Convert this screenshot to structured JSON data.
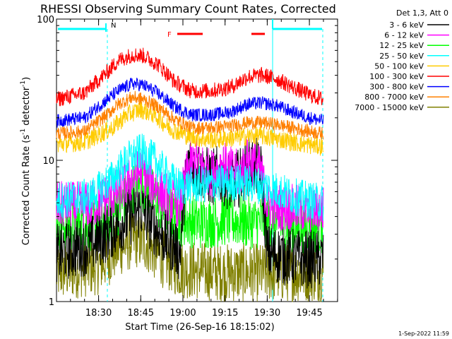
{
  "chart_data": {
    "type": "line",
    "title": "RHESSI Observing Summary Count Rates, Corrected",
    "xlabel": "Start Time (26-Sep-16 18:15:02)",
    "ylabel_main": "Corrected Count Rate (s",
    "ylabel_sup1": "-1",
    "ylabel_mid": " detector",
    "ylabel_sup2": "-1",
    "ylabel_end": ")",
    "yscale": "log",
    "ylim": [
      1,
      100
    ],
    "xlim_minutes": [
      0,
      100
    ],
    "x_ticks": [
      {
        "label": "18:30",
        "minutes": 14.97
      },
      {
        "label": "18:45",
        "minutes": 29.97
      },
      {
        "label": "19:00",
        "minutes": 44.97
      },
      {
        "label": "19:15",
        "minutes": 59.97
      },
      {
        "label": "19:30",
        "minutes": 74.97
      },
      {
        "label": "19:45",
        "minutes": 89.97
      }
    ],
    "y_ticks": [
      {
        "label": "1",
        "value": 1
      },
      {
        "label": "10",
        "value": 10
      },
      {
        "label": "100",
        "value": 100
      }
    ],
    "legend_title": "Det 1,3, Att 0",
    "legend_position": "right",
    "series": [
      {
        "name": "3 - 6 keV",
        "color": "#000000",
        "points": [
          [
            0,
            2.2
          ],
          [
            12,
            2.5
          ],
          [
            22,
            3.5
          ],
          [
            30,
            4.5
          ],
          [
            37,
            3.0
          ],
          [
            42,
            2.5
          ],
          [
            44,
            2.2
          ],
          [
            45,
            5
          ],
          [
            47,
            9.5
          ],
          [
            50,
            8.5
          ],
          [
            55,
            7.5
          ],
          [
            58,
            8
          ],
          [
            62,
            7
          ],
          [
            65,
            7.5
          ],
          [
            68,
            9
          ],
          [
            71,
            9
          ],
          [
            73,
            8
          ],
          [
            75,
            2.2
          ],
          [
            88,
            2.0
          ],
          [
            95,
            2.0
          ]
        ]
      },
      {
        "name": "6 - 12 keV",
        "color": "#ff00ff",
        "points": [
          [
            0,
            4.8
          ],
          [
            12,
            4.8
          ],
          [
            22,
            6
          ],
          [
            30,
            8.5
          ],
          [
            37,
            6
          ],
          [
            42,
            5
          ],
          [
            44,
            5
          ],
          [
            47,
            9
          ],
          [
            50,
            10
          ],
          [
            53,
            8.5
          ],
          [
            56,
            8
          ],
          [
            59,
            9.5
          ],
          [
            62,
            8.5
          ],
          [
            65,
            8
          ],
          [
            68,
            10
          ],
          [
            71,
            9.5
          ],
          [
            73,
            8
          ],
          [
            75,
            4.8
          ],
          [
            88,
            4.5
          ],
          [
            95,
            4.5
          ]
        ]
      },
      {
        "name": "12 - 25 keV",
        "color": "#00ff00",
        "points": [
          [
            0,
            3.5
          ],
          [
            15,
            3.5
          ],
          [
            22,
            4.5
          ],
          [
            28,
            6.5
          ],
          [
            32,
            6.5
          ],
          [
            38,
            4.5
          ],
          [
            44,
            3.8
          ],
          [
            52,
            3.6
          ],
          [
            60,
            3.8
          ],
          [
            70,
            3.6
          ],
          [
            75,
            3.8
          ],
          [
            82,
            3.5
          ],
          [
            95,
            3.3
          ]
        ]
      },
      {
        "name": "25 - 50 keV",
        "color": "#00ffff",
        "points": [
          [
            0,
            5.2
          ],
          [
            12,
            5.5
          ],
          [
            20,
            7.5
          ],
          [
            25,
            10
          ],
          [
            30,
            11.5
          ],
          [
            35,
            10
          ],
          [
            40,
            7.5
          ],
          [
            44,
            6.5
          ],
          [
            55,
            6.8
          ],
          [
            65,
            7
          ],
          [
            75,
            6.5
          ],
          [
            85,
            5.5
          ],
          [
            95,
            5.0
          ]
        ]
      },
      {
        "name": "50 - 100 keV",
        "color": "#ffcc00",
        "points": [
          [
            0,
            13
          ],
          [
            10,
            13.5
          ],
          [
            20,
            17
          ],
          [
            25,
            21
          ],
          [
            30,
            23
          ],
          [
            35,
            21
          ],
          [
            40,
            17
          ],
          [
            48,
            14.5
          ],
          [
            56,
            14
          ],
          [
            64,
            14.5
          ],
          [
            72,
            15
          ],
          [
            80,
            14
          ],
          [
            88,
            13
          ],
          [
            95,
            12.5
          ]
        ]
      },
      {
        "name": "100 - 300 keV",
        "color": "#ff0000",
        "points": [
          [
            0,
            27
          ],
          [
            10,
            30
          ],
          [
            18,
            42
          ],
          [
            22,
            51
          ],
          [
            27,
            56
          ],
          [
            31,
            55
          ],
          [
            36,
            48
          ],
          [
            42,
            36
          ],
          [
            48,
            31
          ],
          [
            55,
            31
          ],
          [
            62,
            33
          ],
          [
            68,
            39
          ],
          [
            73,
            40
          ],
          [
            78,
            38
          ],
          [
            84,
            33
          ],
          [
            90,
            29
          ],
          [
            95,
            27
          ]
        ]
      },
      {
        "name": "300 - 800 keV",
        "color": "#0000ff",
        "points": [
          [
            0,
            19
          ],
          [
            10,
            20
          ],
          [
            18,
            27
          ],
          [
            22,
            31
          ],
          [
            27,
            35
          ],
          [
            31,
            34
          ],
          [
            36,
            30
          ],
          [
            42,
            24
          ],
          [
            48,
            21
          ],
          [
            55,
            21
          ],
          [
            62,
            22
          ],
          [
            68,
            25
          ],
          [
            73,
            25.5
          ],
          [
            78,
            24.5
          ],
          [
            84,
            22
          ],
          [
            90,
            20
          ],
          [
            95,
            19
          ]
        ]
      },
      {
        "name": "800 - 7000 keV",
        "color": "#ff8000",
        "points": [
          [
            0,
            15.5
          ],
          [
            10,
            16
          ],
          [
            18,
            21
          ],
          [
            22,
            25
          ],
          [
            27,
            28
          ],
          [
            31,
            27
          ],
          [
            36,
            24
          ],
          [
            42,
            19.5
          ],
          [
            48,
            17
          ],
          [
            55,
            17
          ],
          [
            62,
            17.5
          ],
          [
            68,
            18.5
          ],
          [
            73,
            18.5
          ],
          [
            78,
            18
          ],
          [
            84,
            17
          ],
          [
            90,
            16
          ],
          [
            95,
            15.5
          ]
        ]
      },
      {
        "name": "7000 - 15000 keV",
        "color": "#808000",
        "points": [
          [
            0,
            1.6
          ],
          [
            15,
            1.8
          ],
          [
            22,
            2.4
          ],
          [
            28,
            2.8
          ],
          [
            32,
            2.6
          ],
          [
            38,
            2.0
          ],
          [
            44,
            1.7
          ],
          [
            60,
            1.6
          ],
          [
            75,
            1.6
          ],
          [
            90,
            1.6
          ],
          [
            95,
            1.6
          ]
        ]
      }
    ],
    "flags": [
      {
        "label": "N",
        "color": "#00ffff"
      },
      {
        "label": "F",
        "color": "#ff0000"
      }
    ]
  },
  "timestamp": "1-Sep-2022 11:59"
}
